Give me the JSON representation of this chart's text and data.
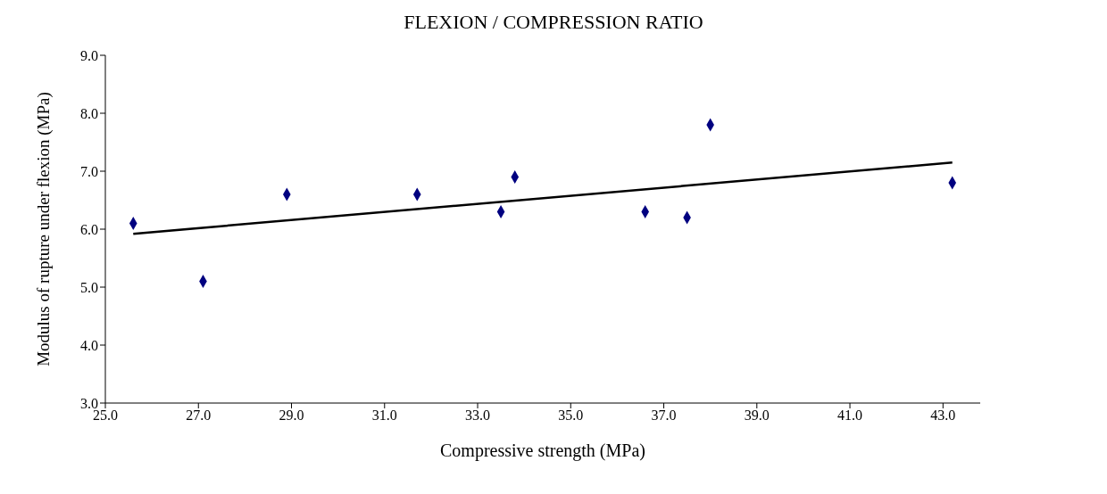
{
  "chart_data": {
    "type": "scatter",
    "title": "FLEXION / COMPRESSION RATIO",
    "xlabel": "Compressive strength (MPa)",
    "ylabel": "Modulus of rupture under flexion (MPa)",
    "x": [
      25.6,
      27.1,
      28.9,
      31.7,
      33.5,
      33.8,
      36.6,
      37.5,
      38.0,
      43.2
    ],
    "series": [
      {
        "color": "#000080",
        "marker": "diamond",
        "values": [
          6.1,
          5.1,
          6.6,
          6.6,
          6.3,
          6.9,
          6.3,
          6.2,
          7.8,
          6.8
        ]
      },
      {
        "type": "line",
        "color": "#000000",
        "marker": "none",
        "line_style": "solid",
        "x": [
          25.6,
          43.2
        ],
        "values": [
          5.92,
          7.15
        ]
      }
    ],
    "xlim": [
      25,
      43.8
    ],
    "xticks": [
      {
        "value": 25,
        "label": "25.0"
      },
      {
        "value": 27,
        "label": "27.0"
      },
      {
        "value": 29,
        "label": "29.0"
      },
      {
        "value": 31,
        "label": "31.0"
      },
      {
        "value": 33,
        "label": "33.0"
      },
      {
        "value": 35,
        "label": "35.0"
      },
      {
        "value": 37,
        "label": "37.0"
      },
      {
        "value": 39,
        "label": "39.0"
      },
      {
        "value": 41,
        "label": "41.0"
      },
      {
        "value": 43,
        "label": "43.0"
      }
    ],
    "ylim": [
      3,
      9
    ],
    "yticks": [
      {
        "value": 3,
        "label": "3.0"
      },
      {
        "value": 4,
        "label": "4.0"
      },
      {
        "value": 5,
        "label": "5.0"
      },
      {
        "value": 6,
        "label": "6.0"
      },
      {
        "value": 7,
        "label": "7.0"
      },
      {
        "value": 8,
        "label": "8.0"
      },
      {
        "value": 9,
        "label": "9.0"
      }
    ],
    "grid": false
  }
}
